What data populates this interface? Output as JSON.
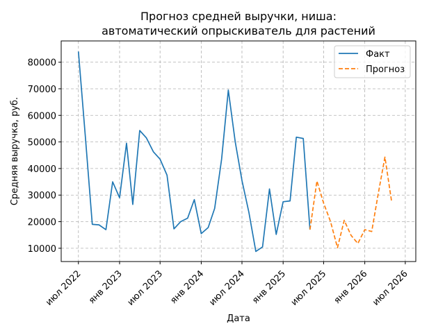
{
  "chart_data": {
    "type": "line",
    "title": "Прогноз средней выручки, ниша:",
    "subtitle": "автоматический опрыскиватель для растений",
    "xlabel": "Дата",
    "ylabel": "Средняя выручка, руб.",
    "ylim": [
      5000,
      88000
    ],
    "xlim": [
      "2022-04-15",
      "2026-08-17"
    ],
    "grid": true,
    "legend_position": "top-right",
    "x_ticks": [
      {
        "date": "2022-07-01",
        "label": "июл 2022"
      },
      {
        "date": "2023-01-01",
        "label": "янв 2023"
      },
      {
        "date": "2023-07-01",
        "label": "июл 2023"
      },
      {
        "date": "2024-01-01",
        "label": "янв 2024"
      },
      {
        "date": "2024-07-01",
        "label": "июл 2024"
      },
      {
        "date": "2025-01-01",
        "label": "янв 2025"
      },
      {
        "date": "2025-07-01",
        "label": "июл 2025"
      },
      {
        "date": "2026-01-01",
        "label": "янв 2026"
      },
      {
        "date": "2026-07-01",
        "label": "июл 2026"
      }
    ],
    "y_ticks": [
      10000,
      20000,
      30000,
      40000,
      50000,
      60000,
      70000,
      80000
    ],
    "series": [
      {
        "name": "Факт",
        "color": "#1f77b4",
        "style": "solid",
        "points": [
          [
            "2022-07-01",
            84000
          ],
          [
            "2022-08-01",
            52000
          ],
          [
            "2022-09-01",
            19000
          ],
          [
            "2022-10-01",
            18800
          ],
          [
            "2022-11-01",
            17000
          ],
          [
            "2022-12-01",
            35000
          ],
          [
            "2023-01-01",
            29000
          ],
          [
            "2023-02-01",
            49500
          ],
          [
            "2023-03-01",
            26500
          ],
          [
            "2023-04-01",
            54300
          ],
          [
            "2023-05-01",
            51500
          ],
          [
            "2023-06-01",
            46300
          ],
          [
            "2023-07-01",
            43500
          ],
          [
            "2023-08-01",
            37500
          ],
          [
            "2023-09-01",
            17300
          ],
          [
            "2023-10-01",
            20000
          ],
          [
            "2023-11-01",
            21300
          ],
          [
            "2023-12-01",
            28300
          ],
          [
            "2024-01-01",
            15500
          ],
          [
            "2024-02-01",
            17800
          ],
          [
            "2024-03-01",
            25000
          ],
          [
            "2024-04-01",
            43500
          ],
          [
            "2024-05-01",
            69500
          ],
          [
            "2024-06-01",
            50000
          ],
          [
            "2024-07-01",
            35500
          ],
          [
            "2024-08-01",
            23500
          ],
          [
            "2024-09-01",
            8800
          ],
          [
            "2024-10-01",
            10500
          ],
          [
            "2024-11-01",
            32300
          ],
          [
            "2024-12-01",
            15200
          ],
          [
            "2025-01-01",
            27500
          ],
          [
            "2025-02-01",
            27800
          ],
          [
            "2025-03-01",
            51800
          ],
          [
            "2025-04-01",
            51300
          ],
          [
            "2025-05-01",
            17000
          ]
        ]
      },
      {
        "name": "Прогноз",
        "color": "#ff7f0e",
        "style": "dashed",
        "points": [
          [
            "2025-05-01",
            17000
          ],
          [
            "2025-06-01",
            35300
          ],
          [
            "2025-07-01",
            27000
          ],
          [
            "2025-08-01",
            20000
          ],
          [
            "2025-09-01",
            10200
          ],
          [
            "2025-10-01",
            20500
          ],
          [
            "2025-11-01",
            14800
          ],
          [
            "2025-12-01",
            11800
          ],
          [
            "2026-01-01",
            17000
          ],
          [
            "2026-02-01",
            16300
          ],
          [
            "2026-03-01",
            30000
          ],
          [
            "2026-04-01",
            44300
          ],
          [
            "2026-05-01",
            27500
          ]
        ]
      }
    ]
  }
}
